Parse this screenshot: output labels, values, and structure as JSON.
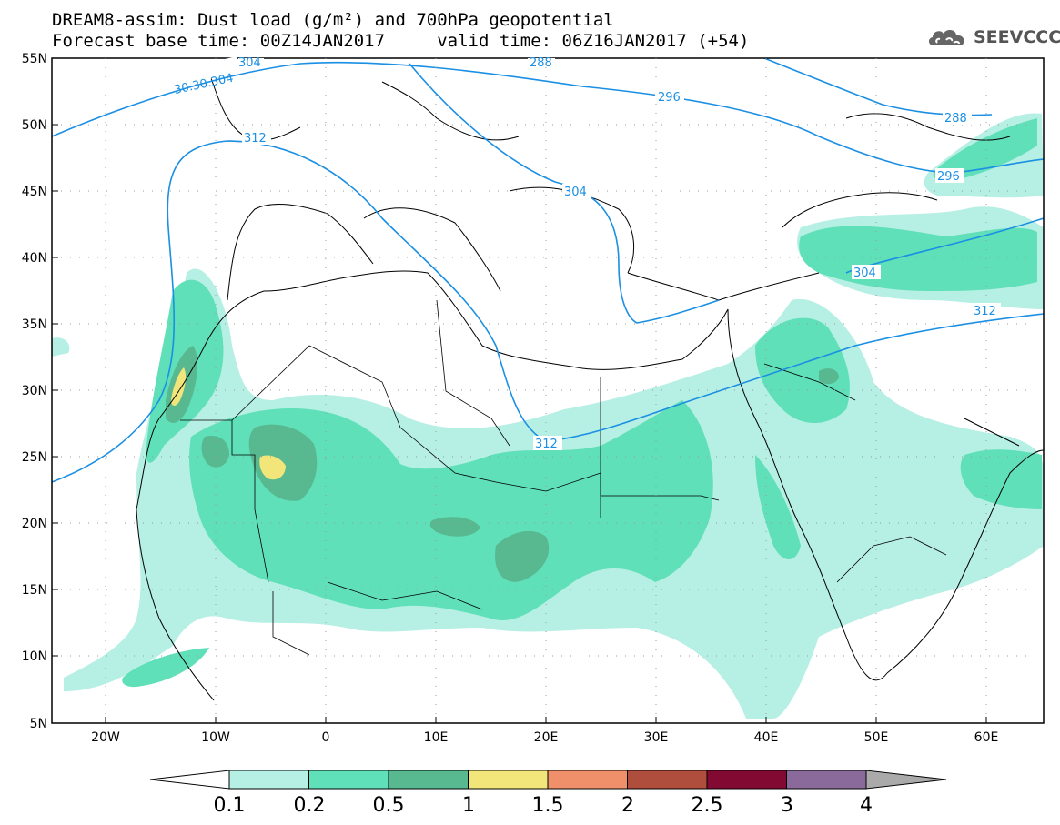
{
  "header": {
    "title_line1": "DREAM8-assim: Dust load (g/m²) and 700hPa geopotential",
    "title_line2": "Forecast base time: 00Z14JAN2017     valid time: 06Z16JAN2017 (+54)"
  },
  "logo": {
    "text": "SEEVCCC",
    "icon": "cloud-icon"
  },
  "map": {
    "lat_labels": [
      "55N",
      "50N",
      "45N",
      "40N",
      "35N",
      "30N",
      "25N",
      "20N",
      "15N",
      "10N",
      "5N"
    ],
    "lon_labels": [
      "20W",
      "10W",
      "0",
      "10E",
      "20E",
      "30E",
      "40E",
      "50E",
      "60E"
    ],
    "contour_labels": [
      "30.30.304",
      "304",
      "288",
      "296",
      "312",
      "304",
      "288",
      "296",
      "304",
      "312",
      "312"
    ]
  },
  "colorbar": {
    "labels": [
      "0.1",
      "0.2",
      "0.5",
      "1",
      "1.5",
      "2",
      "2.5",
      "3",
      "4"
    ],
    "colors": [
      "#ffffff",
      "#b6efe4",
      "#5fe0b8",
      "#58b890",
      "#f2e67a",
      "#f0906a",
      "#b04e3e",
      "#820a32",
      "#8a6a9a",
      "#aaaaaa"
    ]
  }
}
